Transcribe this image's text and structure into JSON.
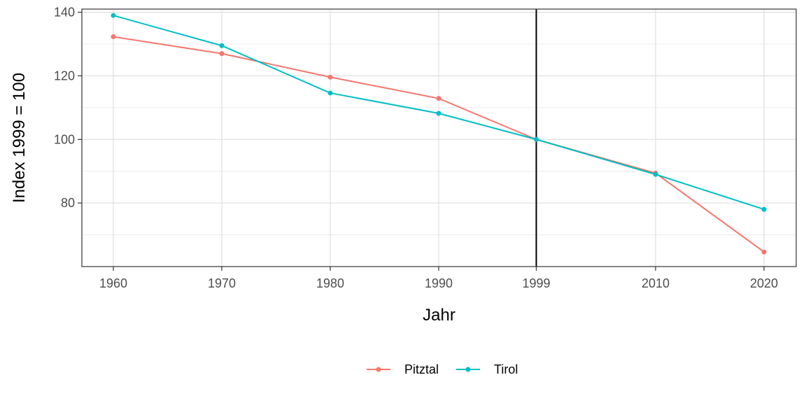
{
  "chart_data": {
    "type": "line",
    "title": "",
    "xlabel": "Jahr",
    "ylabel": "Index 1999 = 100",
    "x": [
      1960,
      1970,
      1980,
      1990,
      1999,
      2010,
      2020
    ],
    "x_tick_labels": [
      "1960",
      "1970",
      "1980",
      "1990",
      "1999",
      "2010",
      "2020"
    ],
    "y_ticks": [
      80,
      100,
      120,
      140
    ],
    "y_tick_labels": [
      "80",
      "100",
      "120",
      "140"
    ],
    "ylim": [
      60,
      141
    ],
    "reference_line_x": 1999,
    "grid": true,
    "legend_position": "bottom",
    "series": [
      {
        "name": "Pitztal",
        "color": "#F8766D",
        "values": [
          132.3,
          127.0,
          119.6,
          112.9,
          100.0,
          89.4,
          64.6
        ]
      },
      {
        "name": "Tirol",
        "color": "#00BFC4",
        "values": [
          139.0,
          129.5,
          114.6,
          108.2,
          100.0,
          89.0,
          78.0
        ]
      }
    ]
  }
}
